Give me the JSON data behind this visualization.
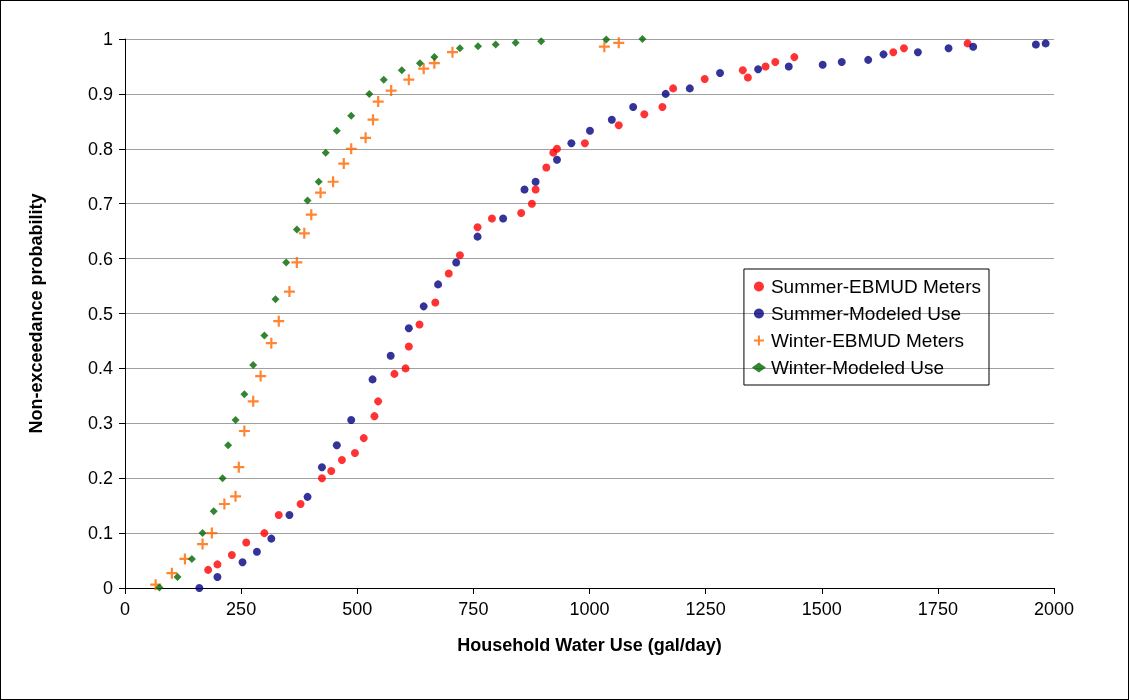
{
  "chart_data": {
    "type": "scatter",
    "xlabel": "Household Water Use (gal/day)",
    "ylabel": "Non-exceedance probability",
    "xlim": [
      0,
      2000
    ],
    "xticks": [
      0,
      250,
      500,
      750,
      1000,
      1250,
      1500,
      1750,
      2000
    ],
    "ylim": [
      0,
      1
    ],
    "yticks": [
      0,
      0.1,
      0.2,
      0.3,
      0.4,
      0.5,
      0.6,
      0.7,
      0.8,
      0.9,
      1
    ],
    "grid": "y",
    "legend": "right",
    "series": [
      {
        "name": "Summer-EBMUD Meters",
        "color": "#ff0000",
        "marker": "circle",
        "x": [
          179,
          199,
          230,
          261,
          300,
          331,
          378,
          424,
          444,
          467,
          495,
          514,
          537,
          545,
          580,
          604,
          611,
          634,
          668,
          697,
          721,
          759,
          790,
          853,
          876,
          884,
          907,
          922,
          930,
          990,
          1063,
          1118,
          1157,
          1180,
          1248,
          1341,
          1330,
          1379,
          1400,
          1441,
          1654,
          1677,
          1814
        ],
        "values": [
          0.033,
          0.043,
          0.06,
          0.083,
          0.1,
          0.133,
          0.153,
          0.2,
          0.213,
          0.233,
          0.246,
          0.273,
          0.313,
          0.34,
          0.39,
          0.4,
          0.44,
          0.48,
          0.52,
          0.573,
          0.606,
          0.657,
          0.673,
          0.683,
          0.7,
          0.726,
          0.766,
          0.793,
          0.8,
          0.81,
          0.843,
          0.863,
          0.876,
          0.91,
          0.927,
          0.93,
          0.943,
          0.95,
          0.958,
          0.967,
          0.976,
          0.983,
          0.992
        ]
      },
      {
        "name": "Summer-Modeled Use",
        "color": "#000080",
        "marker": "circle",
        "x": [
          160,
          199,
          253,
          284,
          315,
          354,
          393,
          424,
          456,
          487,
          533,
          572,
          611,
          643,
          674,
          713,
          759,
          814,
          860,
          884,
          930,
          961,
          1001,
          1048,
          1094,
          1164,
          1216,
          1281,
          1363,
          1429,
          1502,
          1543,
          1600,
          1633,
          1707,
          1773,
          1826,
          1961,
          1982
        ],
        "values": [
          0,
          0.02,
          0.047,
          0.066,
          0.09,
          0.133,
          0.166,
          0.22,
          0.26,
          0.306,
          0.38,
          0.423,
          0.473,
          0.513,
          0.553,
          0.593,
          0.64,
          0.673,
          0.726,
          0.74,
          0.78,
          0.81,
          0.833,
          0.853,
          0.876,
          0.9,
          0.91,
          0.938,
          0.945,
          0.95,
          0.953,
          0.958,
          0.962,
          0.972,
          0.976,
          0.983,
          0.986,
          0.99,
          0.992
        ]
      },
      {
        "name": "Winter-EBMUD Meters",
        "color": "#ff6600",
        "marker": "cross",
        "x": [
          66,
          101,
          129,
          167,
          187,
          214,
          238,
          245,
          257,
          276,
          292,
          315,
          331,
          354,
          370,
          386,
          401,
          421,
          448,
          471,
          487,
          518,
          534,
          545,
          573,
          611,
          643,
          666,
          705,
          1032,
          1063
        ],
        "values": [
          0.006,
          0.027,
          0.053,
          0.08,
          0.1,
          0.153,
          0.167,
          0.22,
          0.286,
          0.34,
          0.386,
          0.446,
          0.486,
          0.54,
          0.593,
          0.646,
          0.68,
          0.72,
          0.74,
          0.773,
          0.8,
          0.82,
          0.853,
          0.886,
          0.906,
          0.926,
          0.946,
          0.956,
          0.976,
          0.986,
          0.993
        ]
      },
      {
        "name": "Winter-Modeled Use",
        "color": "#006600",
        "marker": "diamond",
        "x": [
          74,
          113,
          144,
          167,
          191,
          210,
          222,
          238,
          257,
          276,
          300,
          324,
          347,
          370,
          393,
          417,
          432,
          456,
          487,
          526,
          557,
          596,
          635,
          666,
          721,
          760,
          798,
          841,
          896,
          1036,
          1114
        ],
        "values": [
          0.001,
          0.02,
          0.053,
          0.1,
          0.14,
          0.2,
          0.26,
          0.306,
          0.353,
          0.406,
          0.46,
          0.526,
          0.593,
          0.653,
          0.706,
          0.74,
          0.793,
          0.833,
          0.86,
          0.9,
          0.926,
          0.943,
          0.956,
          0.967,
          0.983,
          0.987,
          0.99,
          0.993,
          0.996,
          0.999,
          1.0
        ]
      }
    ]
  }
}
